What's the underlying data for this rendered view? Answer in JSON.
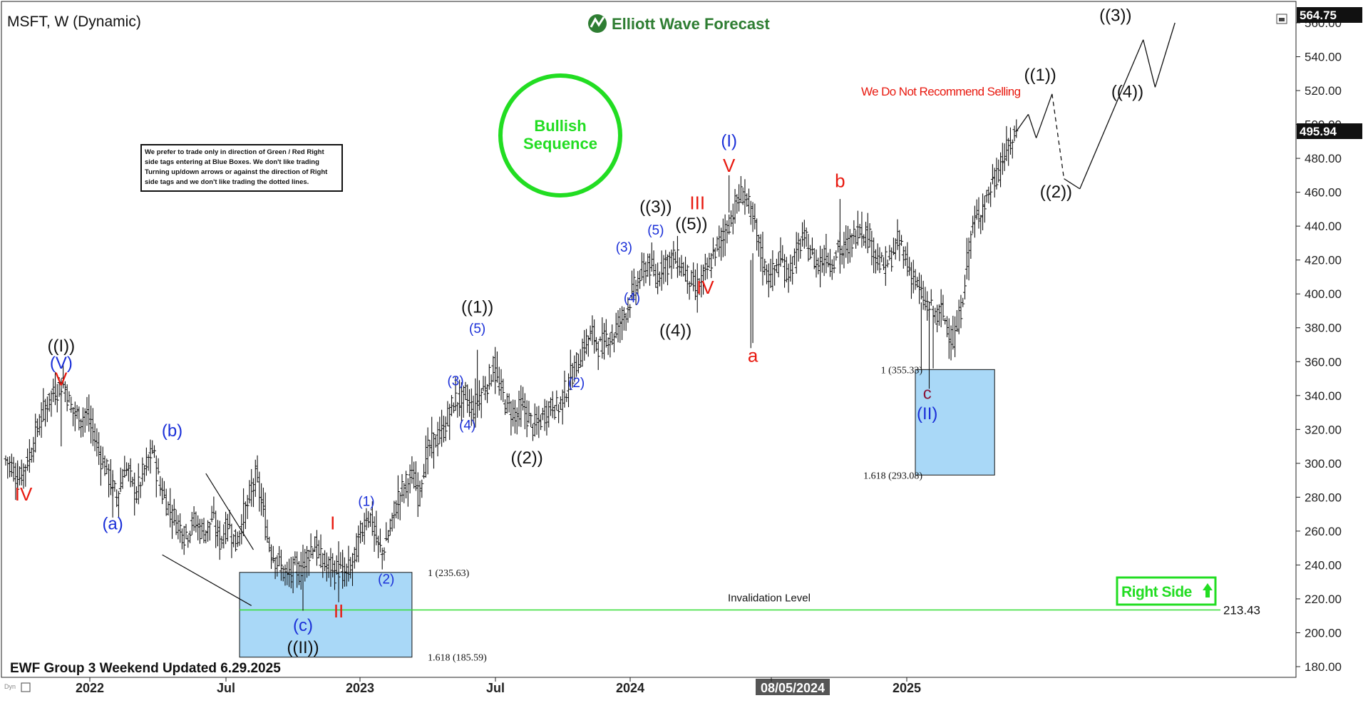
{
  "header": {
    "symbol_title": "MSFT, W (Dynamic)",
    "brand_name": "Elliott Wave Forecast",
    "footer_text": "EWF Group 3 Weekend Updated 6.29.2025",
    "corner_tag": "Dyn"
  },
  "notes": {
    "bullish_circle_line1": "Bullish",
    "bullish_circle_line2": "Sequence",
    "rule_box_lines": [
      "We prefer to trade only in direction of Green / Red Right",
      "side tags entering at Blue Boxes. We don't like trading",
      "Turning up/down arrows or against the direction of Right",
      "side tags and we don't like trading the dotted lines."
    ],
    "warning": "We Do Not Recommend Selling",
    "right_side_tag": "Right Side",
    "invalidation_label": "Invalidation Level",
    "invalidation_value": "213.43"
  },
  "colors": {
    "bullish": "#22dd22",
    "wave_red": "#e8190f",
    "wave_blue": "#1a2fd8",
    "box_fill": "#a9d8f7",
    "box_stroke": "#111111",
    "invalidation_line": "#33dd33",
    "price_tag_bg": "#111111"
  },
  "chart_data": {
    "type": "ohlc",
    "timeframe": "W",
    "ylim": [
      172,
      566
    ],
    "y_ticks": [
      180,
      200,
      220,
      240,
      260,
      280,
      300,
      320,
      340,
      360,
      380,
      400,
      420,
      440,
      460,
      480,
      500,
      520,
      540,
      560
    ],
    "x_ticks": [
      "2022",
      "Jul",
      "2023",
      "Jul",
      "2024",
      "08/05/2024",
      "2025"
    ],
    "price_tags": {
      "current": "495.94",
      "top": "564.75"
    },
    "weekly_closes": [
      [
        0,
        302
      ],
      [
        3,
        298
      ],
      [
        6,
        290
      ],
      [
        9,
        297
      ],
      [
        12,
        305
      ],
      [
        15,
        318
      ],
      [
        18,
        328
      ],
      [
        21,
        336
      ],
      [
        24,
        342
      ],
      [
        26,
        344
      ],
      [
        28,
        347
      ],
      [
        30,
        345
      ],
      [
        32,
        336
      ],
      [
        34,
        330
      ],
      [
        36,
        328
      ],
      [
        38,
        326
      ],
      [
        40,
        330
      ],
      [
        42,
        324
      ],
      [
        44,
        318
      ],
      [
        46,
        310
      ],
      [
        48,
        303
      ],
      [
        50,
        298
      ],
      [
        52,
        292
      ],
      [
        54,
        285
      ],
      [
        56,
        280
      ],
      [
        58,
        289
      ],
      [
        60,
        298
      ],
      [
        62,
        294
      ],
      [
        64,
        286
      ],
      [
        66,
        282
      ],
      [
        68,
        290
      ],
      [
        70,
        296
      ],
      [
        72,
        302
      ],
      [
        74,
        308
      ],
      [
        76,
        296
      ],
      [
        78,
        285
      ],
      [
        80,
        280
      ],
      [
        82,
        274
      ],
      [
        84,
        270
      ],
      [
        86,
        266
      ],
      [
        88,
        262
      ],
      [
        90,
        258
      ],
      [
        92,
        260
      ],
      [
        94,
        266
      ],
      [
        96,
        264
      ],
      [
        98,
        261
      ],
      [
        100,
        260
      ],
      [
        102,
        262
      ],
      [
        104,
        268
      ],
      [
        106,
        260
      ],
      [
        108,
        254
      ],
      [
        110,
        260
      ],
      [
        112,
        265
      ],
      [
        114,
        258
      ],
      [
        116,
        252
      ],
      [
        118,
        262
      ],
      [
        120,
        270
      ],
      [
        122,
        275
      ],
      [
        124,
        286
      ],
      [
        126,
        292
      ],
      [
        128,
        282
      ],
      [
        130,
        270
      ],
      [
        132,
        256
      ],
      [
        134,
        248
      ],
      [
        136,
        244
      ],
      [
        138,
        240
      ],
      [
        140,
        236
      ],
      [
        142,
        232
      ],
      [
        144,
        235
      ],
      [
        146,
        238
      ],
      [
        148,
        236
      ],
      [
        150,
        242
      ],
      [
        152,
        246
      ],
      [
        154,
        250
      ],
      [
        156,
        252
      ],
      [
        158,
        244
      ],
      [
        160,
        242
      ],
      [
        162,
        238
      ],
      [
        164,
        240
      ],
      [
        166,
        236
      ],
      [
        168,
        238
      ],
      [
        170,
        234
      ],
      [
        172,
        236
      ],
      [
        174,
        238
      ],
      [
        176,
        246
      ],
      [
        178,
        254
      ],
      [
        180,
        262
      ],
      [
        182,
        270
      ],
      [
        184,
        268
      ],
      [
        186,
        258
      ],
      [
        188,
        250
      ],
      [
        190,
        248
      ],
      [
        192,
        255
      ],
      [
        194,
        262
      ],
      [
        196,
        272
      ],
      [
        198,
        280
      ],
      [
        200,
        284
      ],
      [
        202,
        288
      ],
      [
        204,
        292
      ],
      [
        206,
        290
      ],
      [
        208,
        282
      ],
      [
        210,
        294
      ],
      [
        212,
        304
      ],
      [
        214,
        310
      ],
      [
        216,
        312
      ],
      [
        218,
        316
      ],
      [
        220,
        318
      ],
      [
        222,
        324
      ],
      [
        224,
        330
      ],
      [
        226,
        336
      ],
      [
        228,
        338
      ],
      [
        230,
        336
      ],
      [
        232,
        340
      ],
      [
        234,
        334
      ],
      [
        236,
        332
      ],
      [
        238,
        338
      ],
      [
        240,
        342
      ],
      [
        242,
        346
      ],
      [
        244,
        350
      ],
      [
        246,
        358
      ],
      [
        248,
        348
      ],
      [
        250,
        342
      ],
      [
        252,
        336
      ],
      [
        254,
        332
      ],
      [
        256,
        330
      ],
      [
        258,
        328
      ],
      [
        260,
        334
      ],
      [
        262,
        330
      ],
      [
        264,
        326
      ],
      [
        266,
        322
      ],
      [
        268,
        322
      ],
      [
        270,
        326
      ],
      [
        272,
        330
      ],
      [
        274,
        332
      ],
      [
        276,
        336
      ],
      [
        278,
        332
      ],
      [
        280,
        336
      ],
      [
        282,
        342
      ],
      [
        284,
        348
      ],
      [
        286,
        354
      ],
      [
        288,
        358
      ],
      [
        290,
        364
      ],
      [
        292,
        370
      ],
      [
        294,
        374
      ],
      [
        296,
        376
      ],
      [
        298,
        372
      ],
      [
        300,
        368
      ],
      [
        302,
        372
      ],
      [
        304,
        376
      ],
      [
        306,
        374
      ],
      [
        308,
        380
      ],
      [
        310,
        384
      ],
      [
        312,
        388
      ],
      [
        314,
        394
      ],
      [
        316,
        400
      ],
      [
        318,
        406
      ],
      [
        320,
        410
      ],
      [
        322,
        414
      ],
      [
        324,
        418
      ],
      [
        326,
        414
      ],
      [
        328,
        408
      ],
      [
        330,
        414
      ],
      [
        332,
        420
      ],
      [
        334,
        418
      ],
      [
        336,
        422
      ],
      [
        338,
        420
      ],
      [
        340,
        418
      ],
      [
        342,
        414
      ],
      [
        344,
        410
      ],
      [
        346,
        406
      ],
      [
        348,
        402
      ],
      [
        350,
        406
      ],
      [
        352,
        410
      ],
      [
        354,
        414
      ],
      [
        356,
        420
      ],
      [
        358,
        426
      ],
      [
        360,
        430
      ],
      [
        362,
        436
      ],
      [
        364,
        440
      ],
      [
        366,
        446
      ],
      [
        368,
        452
      ],
      [
        370,
        456
      ],
      [
        372,
        460
      ],
      [
        374,
        455
      ],
      [
        376,
        446
      ],
      [
        378,
        438
      ],
      [
        380,
        428
      ],
      [
        382,
        418
      ],
      [
        384,
        412
      ],
      [
        386,
        410
      ],
      [
        388,
        414
      ],
      [
        390,
        420
      ],
      [
        392,
        418
      ],
      [
        394,
        412
      ],
      [
        396,
        416
      ],
      [
        398,
        420
      ],
      [
        400,
        428
      ],
      [
        402,
        432
      ],
      [
        404,
        430
      ],
      [
        406,
        424
      ],
      [
        408,
        420
      ],
      [
        410,
        418
      ],
      [
        412,
        420
      ],
      [
        414,
        424
      ],
      [
        416,
        418
      ],
      [
        418,
        422
      ],
      [
        420,
        428
      ],
      [
        422,
        424
      ],
      [
        424,
        428
      ],
      [
        426,
        430
      ],
      [
        428,
        434
      ],
      [
        430,
        440
      ],
      [
        432,
        438
      ],
      [
        434,
        436
      ],
      [
        436,
        432
      ],
      [
        438,
        426
      ],
      [
        440,
        420
      ],
      [
        442,
        416
      ],
      [
        444,
        418
      ],
      [
        446,
        420
      ],
      [
        448,
        426
      ],
      [
        450,
        430
      ],
      [
        452,
        428
      ],
      [
        454,
        420
      ],
      [
        456,
        414
      ],
      [
        458,
        410
      ],
      [
        460,
        404
      ],
      [
        462,
        398
      ],
      [
        464,
        394
      ],
      [
        466,
        392
      ],
      [
        468,
        388
      ],
      [
        470,
        386
      ],
      [
        472,
        390
      ],
      [
        474,
        384
      ],
      [
        476,
        378
      ],
      [
        478,
        372
      ],
      [
        480,
        380
      ],
      [
        482,
        392
      ],
      [
        484,
        410
      ],
      [
        486,
        430
      ],
      [
        488,
        440
      ],
      [
        490,
        446
      ],
      [
        492,
        450
      ],
      [
        494,
        454
      ],
      [
        496,
        460
      ],
      [
        498,
        466
      ],
      [
        500,
        470
      ],
      [
        502,
        478
      ],
      [
        504,
        482
      ],
      [
        506,
        486
      ],
      [
        508,
        492
      ],
      [
        510,
        496
      ]
    ],
    "fib_levels": [
      {
        "label": "1 (235.63)",
        "value": 235.63
      },
      {
        "label": "1.618 (185.59)",
        "value": 185.59
      },
      {
        "label": "1 (355.33)",
        "value": 355.33
      },
      {
        "label": "1.618 (293.08)",
        "value": 293.08
      }
    ],
    "projection_path": [
      [
        510,
        496
      ],
      [
        516,
        506
      ],
      [
        520,
        492
      ],
      [
        528,
        518
      ],
      [
        534,
        468
      ],
      [
        542,
        462
      ],
      [
        574,
        550
      ],
      [
        580,
        522
      ],
      [
        590,
        560
      ]
    ],
    "wave_labels": [
      {
        "text": "((I))",
        "t": 28,
        "v": 366,
        "color": "black"
      },
      {
        "text": "(V)",
        "t": 28,
        "v": 356,
        "color": "blue"
      },
      {
        "text": "V",
        "t": 28,
        "v": 346,
        "color": "red"
      },
      {
        "text": "IV",
        "t": 9,
        "v": 278,
        "color": "red"
      },
      {
        "text": "(a)",
        "t": 54,
        "v": 261,
        "color": "blue"
      },
      {
        "text": "(b)",
        "t": 84,
        "v": 316,
        "color": "blue"
      },
      {
        "text": "I",
        "t": 165,
        "v": 261,
        "color": "red"
      },
      {
        "text": "(1)",
        "t": 182,
        "v": 275,
        "color": "blue"
      },
      {
        "text": "(2)",
        "t": 192,
        "v": 229,
        "color": "blue"
      },
      {
        "text": "II",
        "t": 168,
        "v": 209,
        "color": "red"
      },
      {
        "text": "(c)",
        "t": 150,
        "v": 201,
        "color": "blue"
      },
      {
        "text": "((II))",
        "t": 150,
        "v": 188,
        "color": "black"
      },
      {
        "text": "(3)",
        "t": 227,
        "v": 346,
        "color": "blue"
      },
      {
        "text": "(4)",
        "t": 233,
        "v": 320,
        "color": "blue"
      },
      {
        "text": "(5)",
        "t": 238,
        "v": 377,
        "color": "blue"
      },
      {
        "text": "((1))",
        "t": 238,
        "v": 389,
        "color": "black"
      },
      {
        "text": "((2))",
        "t": 263,
        "v": 300,
        "color": "black"
      },
      {
        "text": "(2)",
        "t": 288,
        "v": 345,
        "color": "blue"
      },
      {
        "text": "(3)",
        "t": 312,
        "v": 425,
        "color": "blue"
      },
      {
        "text": "(4)",
        "t": 316,
        "v": 395,
        "color": "blue"
      },
      {
        "text": "(5)",
        "t": 328,
        "v": 435,
        "color": "blue"
      },
      {
        "text": "((3))",
        "t": 328,
        "v": 448,
        "color": "black"
      },
      {
        "text": "III",
        "t": 349,
        "v": 450,
        "color": "red"
      },
      {
        "text": "((5))",
        "t": 346,
        "v": 438,
        "color": "black"
      },
      {
        "text": "IV",
        "t": 353,
        "v": 400,
        "color": "red"
      },
      {
        "text": "((4))",
        "t": 338,
        "v": 375,
        "color": "black"
      },
      {
        "text": "(I)",
        "t": 365,
        "v": 487,
        "color": "blue"
      },
      {
        "text": "V",
        "t": 365,
        "v": 472,
        "color": "red"
      },
      {
        "text": "a",
        "t": 377,
        "v": 360,
        "color": "red"
      },
      {
        "text": "b",
        "t": 421,
        "v": 463,
        "color": "red"
      },
      {
        "text": "c",
        "t": 465,
        "v": 338,
        "color": "purple"
      },
      {
        "text": "(II)",
        "t": 465,
        "v": 326,
        "color": "blue"
      },
      {
        "text": "((1))",
        "t": 522,
        "v": 526,
        "color": "black"
      },
      {
        "text": "((2))",
        "t": 530,
        "v": 457,
        "color": "black"
      },
      {
        "text": "((3))",
        "t": 560,
        "v": 561,
        "color": "black"
      },
      {
        "text": "((4))",
        "t": 566,
        "v": 516,
        "color": "black"
      }
    ]
  }
}
